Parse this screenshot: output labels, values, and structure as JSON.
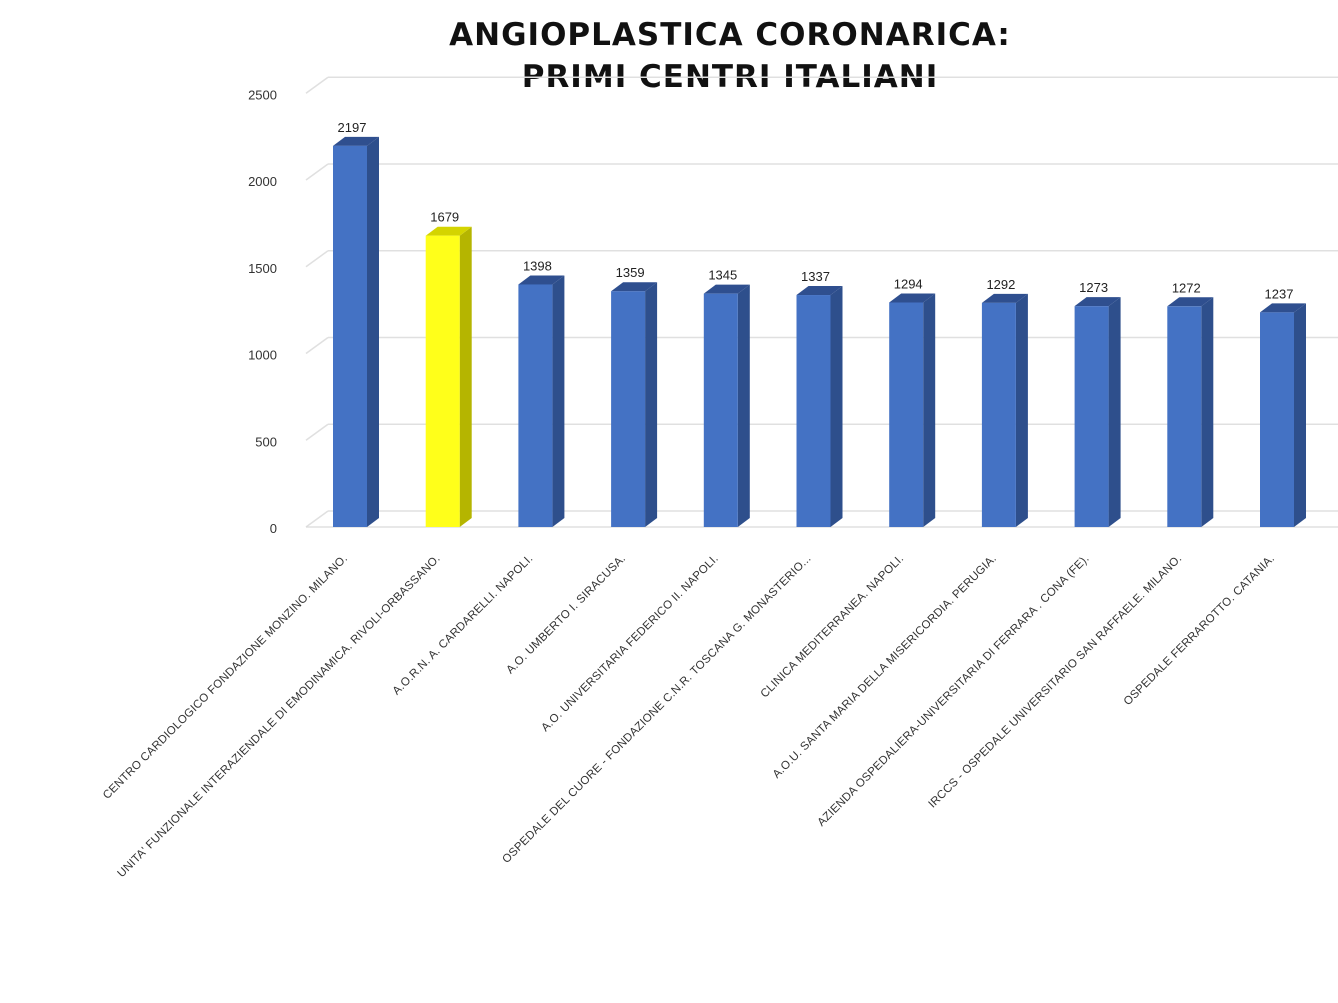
{
  "chart_data": {
    "type": "bar",
    "title_lines": [
      "ANGIOPLASTICA CORONARICA:",
      "PRIMI CENTRI ITALIANI"
    ],
    "categories": [
      "CENTRO CARDIOLOGICO FONDAZIONE MONZINO. MILANO.",
      "UNITA' FUNZIONALE INTERAZIENDALE DI EMODINAMICA. RIVOLI-ORBASSANO.",
      "A.O.R.N. A. CARDARELLI. NAPOLI.",
      "A.O. UMBERTO I. SIRACUSA.",
      "A.O. UNIVERSITARIA FEDERICO II. NAPOLI.",
      "OSPEDALE DEL CUORE - FONDAZIONE C.N.R. TOSCANA G. MONASTERIO...",
      "CLINICA MEDITERRANEA. NAPOLI.",
      "A.O.U. SANTA MARIA DELLA MISERICORDIA. PERUGIA.",
      "AZIENDA OSPEDALIERA-UNIVERSITARIA DI FERRARA . CONA (FE).",
      "IRCCS - OSPEDALE UNIVERSITARIO SAN RAFFAELE. MILANO.",
      "OSPEDALE FERRAROTTO. CATANIA."
    ],
    "values": [
      2197,
      1679,
      1398,
      1359,
      1345,
      1337,
      1294,
      1292,
      1273,
      1272,
      1237
    ],
    "data_labels": [
      "2197",
      "1679",
      "1398",
      "1359",
      "1345",
      "1337",
      "1294",
      "1292",
      "1273",
      "1272",
      "1237"
    ],
    "y_ticks": [
      "0",
      "500",
      "1000",
      "1500",
      "2000",
      "2500"
    ],
    "ylim": [
      0,
      2500
    ],
    "grid": true,
    "style": "3d-column",
    "colors": {
      "bar": "#4472c4",
      "bar_side": "#2e4f8c",
      "bar_top": "#2f4f8f",
      "highlight": "#ffff1a",
      "highlight_side": "#b5b500",
      "highlight_top": "#d4d400",
      "grid": "#e0e0e0",
      "floor": "#d9d9d9"
    },
    "highlight_index": 1
  }
}
